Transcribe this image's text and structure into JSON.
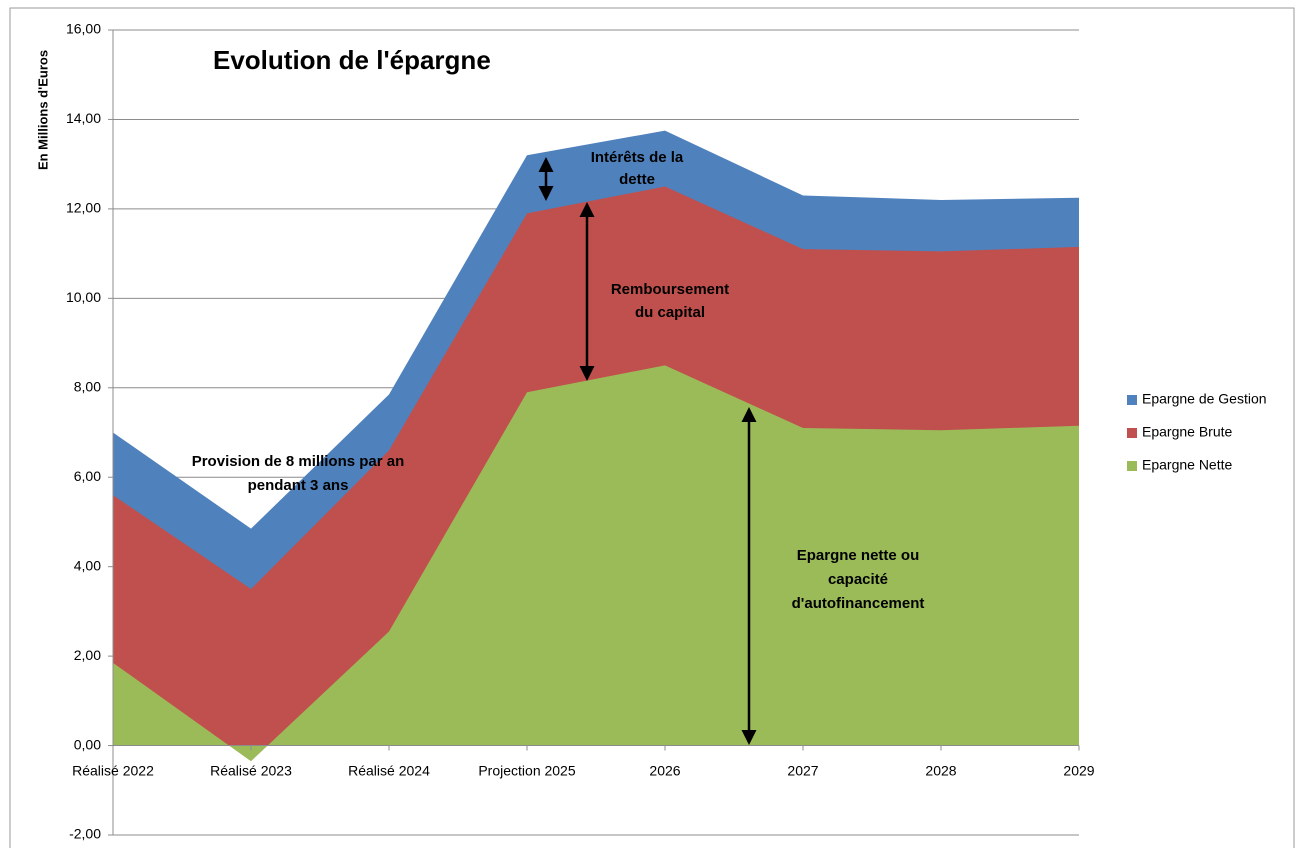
{
  "chart_data": {
    "type": "area",
    "title": "Evolution de l'épargne",
    "ylabel": "En Millions d'Euros",
    "categories": [
      "Réalisé 2022",
      "Réalisé 2023",
      "Réalisé 2024",
      "Projection 2025",
      "2026",
      "2027",
      "2028",
      "2029"
    ],
    "series": [
      {
        "name": "Epargne de Gestion",
        "color": "#4f81bd",
        "values": [
          7.0,
          4.85,
          7.85,
          13.2,
          13.75,
          12.3,
          12.2,
          12.25
        ]
      },
      {
        "name": "Epargne Brute",
        "color": "#c0504d",
        "values": [
          5.6,
          3.5,
          6.6,
          11.9,
          12.5,
          11.1,
          11.05,
          11.15
        ]
      },
      {
        "name": "Epargne Nette",
        "color": "#9bbb59",
        "values": [
          1.85,
          -0.35,
          2.55,
          7.9,
          8.5,
          7.1,
          7.05,
          7.15
        ]
      }
    ],
    "ylim": [
      -2,
      16
    ],
    "yticks": [
      {
        "value": -2,
        "label": "-2,00"
      },
      {
        "value": 0,
        "label": "0,00"
      },
      {
        "value": 2,
        "label": "2,00"
      },
      {
        "value": 4,
        "label": "4,00"
      },
      {
        "value": 6,
        "label": "6,00"
      },
      {
        "value": 8,
        "label": "8,00"
      },
      {
        "value": 10,
        "label": "10,00"
      },
      {
        "value": 12,
        "label": "12,00"
      },
      {
        "value": 14,
        "label": "14,00"
      },
      {
        "value": 16,
        "label": "16,00"
      }
    ],
    "grid": true,
    "legend": "right",
    "annotations": [
      {
        "lines": [
          "Intérêts de la",
          "dette"
        ]
      },
      {
        "lines": [
          "Remboursement",
          "du capital"
        ]
      },
      {
        "lines": [
          "Provision de 8 millions par an",
          "pendant 3 ans"
        ]
      },
      {
        "lines": [
          "Epargne nette ou",
          "capacité",
          "d'autofinancement"
        ]
      }
    ]
  }
}
